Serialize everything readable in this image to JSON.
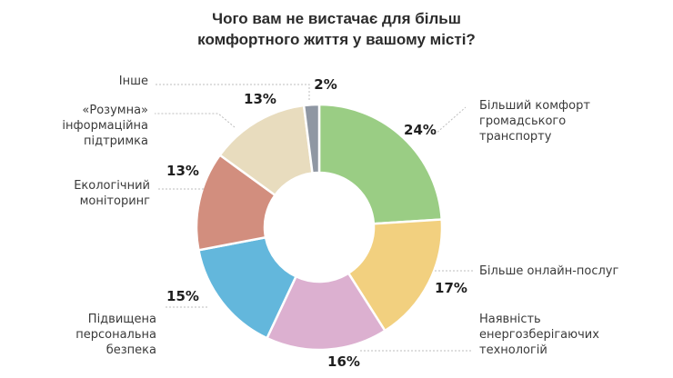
{
  "chart_data": {
    "type": "pie",
    "title": [
      "Чого вам не вистачає для більш",
      "комфортного життя у вашому місті?"
    ],
    "unit": "%",
    "slices": [
      {
        "label": [
          "Більший комфорт",
          "громадського",
          "транспорту"
        ],
        "value": 24,
        "color": "#9acd84"
      },
      {
        "label": [
          "Більше онлайн-послуг"
        ],
        "value": 17,
        "color": "#f2d07f"
      },
      {
        "label": [
          "Наявність",
          "енергозберігаючих",
          "технологій"
        ],
        "value": 16,
        "color": "#dcb0d0"
      },
      {
        "label": [
          "Підвищена",
          "персональна",
          "безпека"
        ],
        "value": 15,
        "color": "#63b7dc"
      },
      {
        "label": [
          "Екологічний",
          "моніторинг"
        ],
        "value": 13,
        "color": "#d28e7e"
      },
      {
        "label": [
          "«Розумна»",
          "інформаційна",
          "підтримка"
        ],
        "value": 13,
        "color": "#e8dcbe"
      },
      {
        "label": [
          "Інше"
        ],
        "value": 2,
        "color": "#8f97a3"
      }
    ]
  }
}
